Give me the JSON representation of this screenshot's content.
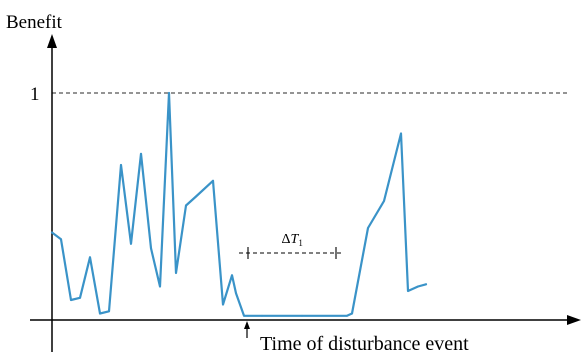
{
  "chart_data": {
    "type": "line",
    "ylabel": "Benefit",
    "xlabel": "Time of disturbance event",
    "yticks": [
      {
        "value": 1,
        "label": "1"
      }
    ],
    "ylim": [
      0,
      1.1
    ],
    "xlim": [
      0,
      530
    ],
    "reference_line": {
      "y": 1,
      "style": "dashed"
    },
    "annotation": {
      "label_main": "ΔT",
      "label_sub": "1",
      "x_start": 187,
      "x_end": 292,
      "y": 0.28
    },
    "event_marker_x": 195,
    "colors": {
      "series": "#3a93c8",
      "axis": "#000000",
      "reference": "#555555"
    },
    "series": [
      {
        "x": [
          0,
          9,
          19,
          28,
          38,
          48,
          57,
          69,
          79,
          89,
          99,
          108,
          117,
          124,
          134,
          144,
          161,
          171,
          180,
          184,
          192,
          196,
          210,
          250,
          295,
          300,
          316,
          332,
          349,
          356,
          366,
          374
        ],
        "y": [
          0.38,
          0.35,
          0.08,
          0.09,
          0.27,
          0.02,
          0.03,
          0.68,
          0.33,
          0.73,
          0.31,
          0.14,
          1.0,
          0.2,
          0.5,
          0.54,
          0.61,
          0.06,
          0.19,
          0.11,
          0.01,
          0.01,
          0.01,
          0.01,
          0.01,
          0.02,
          0.4,
          0.52,
          0.82,
          0.12,
          0.14,
          0.15
        ]
      }
    ]
  }
}
